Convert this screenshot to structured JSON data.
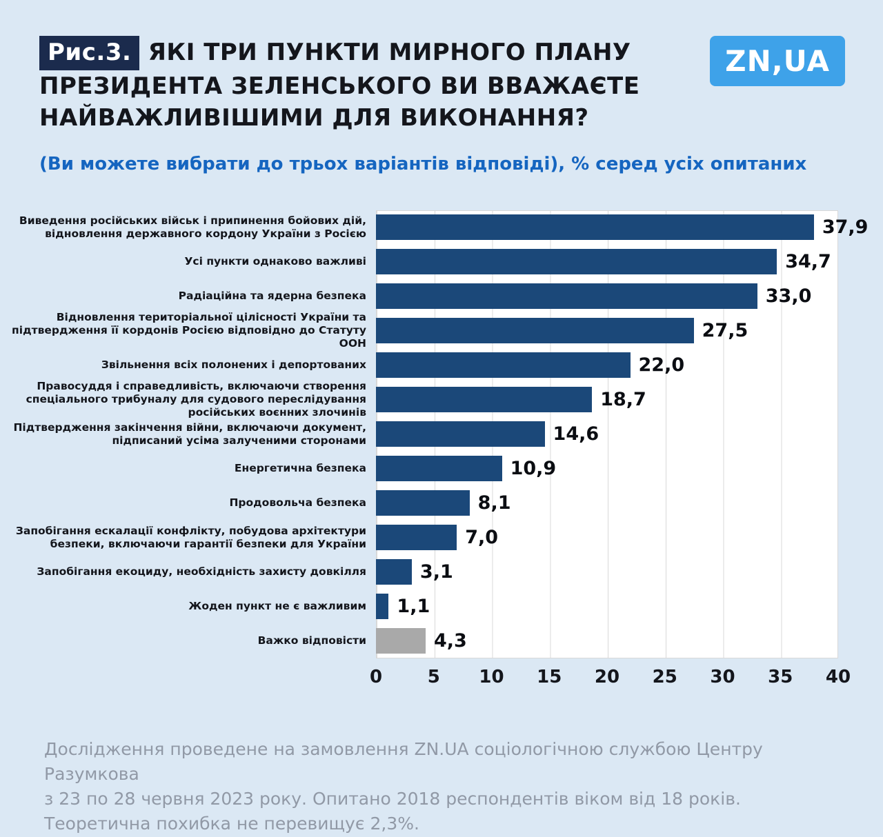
{
  "header": {
    "fig_label": "Рис.3.",
    "title": "ЯКІ ТРИ ПУНКТИ МИРНОГО ПЛАНУ ПРЕЗИДЕНТА ЗЕЛЕНСЬКОГО ВИ ВВАЖАЄТЕ НАЙВАЖЛИВІШИМИ ДЛЯ ВИКОНАННЯ?",
    "logo_text": "ZN,UA"
  },
  "subtitle": "(Ви можете вибрати до трьох варіантів відповіді), % серед усіх опитаних",
  "chart_data": {
    "type": "bar",
    "orientation": "horizontal",
    "title": "ЯКІ ТРИ ПУНКТИ МИРНОГО ПЛАНУ ПРЕЗИДЕНТА ЗЕЛЕНСЬКОГО ВИ ВВАЖАЄТЕ НАЙВАЖЛИВІШИМИ ДЛЯ ВИКОНАННЯ?",
    "subtitle": "(Ви можете вибрати до трьох варіантів відповіді), % серед усіх опитаних",
    "categories": [
      "Виведення російських військ і припинення бойових дій, відновлення державного кордону України з Росією",
      "Усі пункти однаково важливі",
      "Радіаційна та ядерна безпека",
      "Відновлення територіальної цілісності України та підтвердження її кордонів Росією відповідно до Статуту ООН",
      "Звільнення всіх полонених і депортованих",
      "Правосуддя і справедливість, включаючи створення спеціального трибуналу для судового переслідування російських воєнних злочинів",
      "Підтвердження закінчення війни, включаючи документ, підписаний усіма залученими сторонами",
      "Енергетична безпека",
      "Продовольча безпека",
      "Запобігання ескалації конфлікту, побудова архітектури безпеки, включаючи гарантії безпеки для України",
      "Запобігання екоциду, необхідність захисту довкілля",
      "Жоден пункт не є важливим",
      "Важко відповісти"
    ],
    "values": [
      37.9,
      34.7,
      33.0,
      27.5,
      22.0,
      18.7,
      14.6,
      10.9,
      8.1,
      7.0,
      3.1,
      1.1,
      4.3
    ],
    "value_labels": [
      "37,9",
      "34,7",
      "33,0",
      "27,5",
      "22,0",
      "18,7",
      "14,6",
      "10,9",
      "8,1",
      "7,0",
      "3,1",
      "1,1",
      "4,3"
    ],
    "xlim": [
      0,
      40
    ],
    "x_ticks": [
      0,
      5,
      10,
      15,
      20,
      25,
      30,
      35,
      40
    ],
    "unit": "%",
    "grid": true,
    "bar_color": "#1B4879",
    "highlight_index": 12,
    "highlight_color": "#A9A9A9",
    "legend": "none"
  },
  "footer": {
    "lines": [
      "Дослідження проведене на замовлення ZN.UA соціологічною службою Центру Разумкова",
      "з 23 по 28 червня 2023 року. Опитано 2018 респондентів віком від 18 років.",
      "Теоретична похибка не перевищує 2,3%."
    ]
  },
  "colors": {
    "page_background": "#DBE8F4",
    "title_text": "#14161C",
    "badge_background": "#1B2B4D",
    "subtitle_text": "#1565C0",
    "logo_background": "#3EA2E9",
    "plot_background": "#FFFFFF",
    "gridline": "#D8D8D8",
    "footer_text": "#9199A6"
  }
}
